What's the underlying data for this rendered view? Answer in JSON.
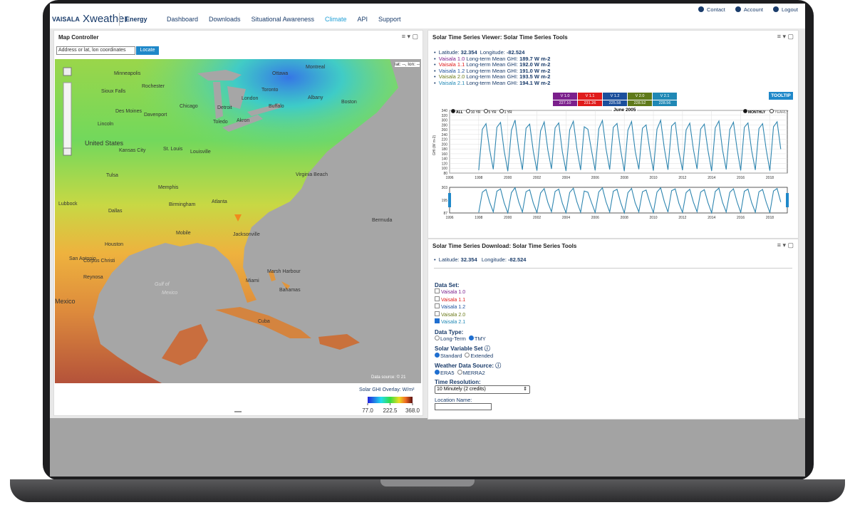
{
  "header": {
    "brand": "VAISALA",
    "product": "Xweather",
    "section": "Energy",
    "nav": [
      "Dashboard",
      "Downloads",
      "Situational Awareness",
      "Climate",
      "API",
      "Support"
    ],
    "active_nav": 3,
    "utility": [
      "Contact",
      "Account",
      "Logout"
    ]
  },
  "map_panel": {
    "title": "Map Controller",
    "search_placeholder": "Address or lat, lon coordinates",
    "locate_button": "Locate",
    "coords": "lat: --, lon: --",
    "labels": [
      "Minneapolis",
      "Rochester",
      "Sioux Falls",
      "Des Moines",
      "Davenport",
      "Chicago",
      "Detroit",
      "Toledo",
      "Akron",
      "London",
      "Montreal",
      "Ottawa",
      "Toronto",
      "Buffalo",
      "Albany",
      "Boston",
      "Lincoln",
      "United States",
      "Kansas City",
      "St. Louis",
      "Louisville",
      "Virginia Beach",
      "Tulsa",
      "Memphis",
      "Lubbock",
      "Dallas",
      "Birmingham",
      "Atlanta",
      "Bermuda",
      "Houston",
      "Mobile",
      "Jacksonville",
      "San Antonio",
      "Corpus Christi",
      "Reynosa",
      "Mexico",
      "Gulf of",
      "Mexico",
      "Miami",
      "Marsh Harbour",
      "Bahamas",
      "Cuba"
    ],
    "attribution": "Data source: © 21",
    "legend": {
      "title": "Solar GHI Overlay: W/m²",
      "ticks": [
        {
          "value": 77,
          "label": "77.0"
        },
        {
          "value": 222.5,
          "label": "222.5"
        },
        {
          "value": 368,
          "label": "368.0"
        }
      ]
    }
  },
  "viewer": {
    "title": "Solar Time Series Viewer: Solar Time Series Tools",
    "latitude_label": "Latitude:",
    "latitude": "32.354",
    "longitude_label": "Longitude:",
    "longitude": "-82.524",
    "summary": [
      {
        "name": "Vaisala 1.0",
        "label": "Long-term Mean GHI:",
        "value": "189.7 W m-2",
        "color": "#7b1f8c"
      },
      {
        "name": "Vaisala 1.1",
        "label": "Long-term Mean GHI:",
        "value": "192.0 W m-2",
        "color": "#e01b1b"
      },
      {
        "name": "Vaisala 1.2",
        "label": "Long-term Mean GHI:",
        "value": "191.0 W m-2",
        "color": "#1b4f9c"
      },
      {
        "name": "Vaisala 2.0",
        "label": "Long-term Mean GHI:",
        "value": "193.5 W m-2",
        "color": "#6b7a1a"
      },
      {
        "name": "Vaisala 2.1",
        "label": "Long-term Mean GHI:",
        "value": "194.1 W m-2",
        "color": "#1f88b5"
      }
    ],
    "versions": [
      {
        "label": "V 1.0",
        "value": "227.10",
        "color": "#7b1f8c"
      },
      {
        "label": "V 1.1",
        "value": "231.26",
        "color": "#e01b1b"
      },
      {
        "label": "V 1.2",
        "value": "225.58",
        "color": "#1b4f9c"
      },
      {
        "label": "V 2.0",
        "value": "228.52",
        "color": "#5f7a1a"
      },
      {
        "label": "V 2.1",
        "value": "228.56",
        "color": "#1f88b5"
      }
    ],
    "tooltip_button": "TOOLTIP",
    "ranges": [
      "ALL",
      "10 YR",
      "5 YR",
      "1 YR"
    ],
    "aggregations": [
      "MONTHLY",
      "YEARLY"
    ]
  },
  "chart_data": {
    "type": "line",
    "title": "June 2005",
    "y_label": "GHI (W m-2)",
    "color": "#2f86b0",
    "x": [
      1998,
      1998.25,
      1998.5,
      1998.75,
      1999,
      1999.25,
      1999.5,
      1999.75,
      2000,
      2000.25,
      2000.5,
      2000.75,
      2001,
      2001.25,
      2001.5,
      2001.75,
      2002,
      2002.25,
      2002.5,
      2002.75,
      2003,
      2003.25,
      2003.5,
      2003.75,
      2004,
      2004.25,
      2004.5,
      2004.75,
      2005,
      2005.25,
      2005.5,
      2005.75,
      2006,
      2006.25,
      2006.5,
      2006.75,
      2007,
      2007.25,
      2007.5,
      2007.75,
      2008,
      2008.25,
      2008.5,
      2008.75,
      2009,
      2009.25,
      2009.5,
      2009.75,
      2010,
      2010.25,
      2010.5,
      2010.75,
      2011,
      2011.25,
      2011.5,
      2011.75,
      2012,
      2012.25,
      2012.5,
      2012.75,
      2013,
      2013.25,
      2013.5,
      2013.75,
      2014,
      2014.25,
      2014.5,
      2014.75,
      2015,
      2015.25,
      2015.5,
      2015.75,
      2016,
      2016.25,
      2016.5,
      2016.75,
      2017,
      2017.25,
      2017.5,
      2017.75,
      2018,
      2018.25,
      2018.5,
      2018.75
    ],
    "values": [
      92,
      262,
      285,
      178,
      96,
      270,
      290,
      172,
      88,
      258,
      300,
      181,
      94,
      266,
      283,
      170,
      90,
      255,
      292,
      176,
      97,
      268,
      288,
      168,
      89,
      260,
      295,
      179,
      93,
      272,
      262,
      174,
      91,
      264,
      298,
      180,
      95,
      270,
      286,
      175,
      88,
      258,
      294,
      171,
      96,
      266,
      280,
      177,
      90,
      262,
      299,
      182,
      94,
      275,
      290,
      169,
      92,
      259,
      287,
      178,
      97,
      263,
      283,
      173,
      89,
      268,
      296,
      176,
      95,
      261,
      291,
      180,
      91,
      270,
      288,
      174,
      93,
      265,
      285,
      177,
      90,
      272,
      293,
      179
    ],
    "xlim": [
      1996,
      2019.2
    ],
    "xticks": [
      1996,
      1998,
      2000,
      2002,
      2004,
      2006,
      2008,
      2010,
      2012,
      2014,
      2016,
      2018
    ],
    "ylim": [
      80,
      340
    ],
    "yticks": [
      80,
      100,
      120,
      140,
      160,
      180,
      200,
      220,
      240,
      260,
      280,
      300,
      320,
      340
    ],
    "grid": true,
    "navigator": {
      "ylim": [
        87,
        303
      ],
      "yticks": [
        87,
        195,
        303
      ]
    }
  },
  "download": {
    "title": "Solar Time Series Download: Solar Time Series Tools",
    "latitude_label": "Latitude:",
    "latitude": "32.354",
    "longitude_label": "Longitude:",
    "longitude": "-82.524",
    "data_set_label": "Data Set:",
    "data_sets": [
      {
        "name": "Vaisala 1.0",
        "color": "#7b1f8c",
        "checked": false
      },
      {
        "name": "Vaisala 1.1",
        "color": "#e01b1b",
        "checked": false
      },
      {
        "name": "Vaisala 1.2",
        "color": "#1b4f9c",
        "checked": false
      },
      {
        "name": "Vaisala 2.0",
        "color": "#6b7a1a",
        "checked": false
      },
      {
        "name": "Vaisala 2.1",
        "color": "#1f88b5",
        "checked": true
      }
    ],
    "data_type_label": "Data Type:",
    "data_types": [
      "Long-Term",
      "TMY"
    ],
    "data_type_selected": 1,
    "variable_set_label": "Solar Variable Set",
    "variable_sets": [
      "Standard",
      "Extended"
    ],
    "variable_set_selected": 0,
    "weather_source_label": "Weather Data Source:",
    "weather_sources": [
      "ERA5",
      "MERRA2"
    ],
    "weather_source_selected": 0,
    "resolution_label": "Time Resolution:",
    "resolution": "10 Minutely (2 credits)",
    "location_name_label": "Location Name:"
  }
}
